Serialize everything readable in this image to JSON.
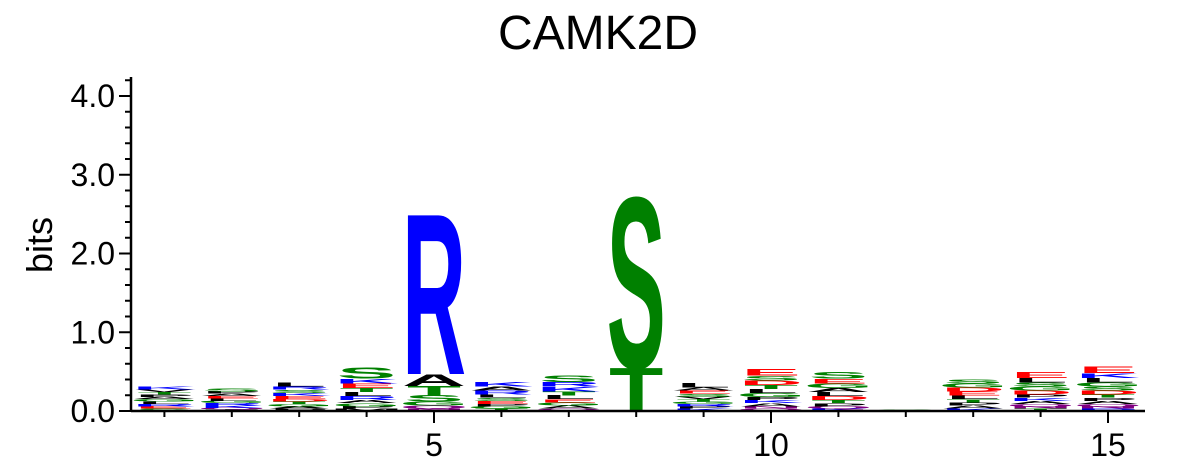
{
  "chart_data": {
    "type": "sequence_logo",
    "title": "CAMK2D",
    "ylabel": "bits",
    "ylim": [
      0,
      4.3
    ],
    "y_ticks": [
      "0.0",
      "1.0",
      "2.0",
      "3.0",
      "4.0"
    ],
    "x_tick_labels": [
      "5",
      "10",
      "15"
    ],
    "x_ticks": [
      5,
      10,
      15
    ],
    "positions": [
      1,
      2,
      3,
      4,
      5,
      6,
      7,
      8,
      9,
      10,
      11,
      12,
      13,
      14,
      15
    ],
    "colors": {
      "acidic": "#ff0000",
      "basic": "#0000ff",
      "polar": "#008000",
      "hydrophobic": "#000000",
      "other": "#800080"
    },
    "columns": [
      {
        "pos": 1,
        "letters": [
          {
            "aa": "K",
            "h": 0.04,
            "c": "#0000ff"
          },
          {
            "aa": "S",
            "h": 0.03,
            "c": "#008000"
          },
          {
            "aa": "E",
            "h": 0.03,
            "c": "#ff0000"
          },
          {
            "aa": "R",
            "h": 0.03,
            "c": "#0000ff"
          },
          {
            "aa": "L",
            "h": 0.03,
            "c": "#000000"
          },
          {
            "aa": "G",
            "h": 0.03,
            "c": "#008000"
          },
          {
            "aa": "A",
            "h": 0.03,
            "c": "#000000"
          },
          {
            "aa": "P",
            "h": 0.03,
            "c": "#000000"
          },
          {
            "aa": "T",
            "h": 0.03,
            "c": "#008000"
          },
          {
            "aa": "V",
            "h": 0.03,
            "c": "#000000"
          }
        ]
      },
      {
        "pos": 2,
        "letters": [
          {
            "aa": "S",
            "h": 0.04,
            "c": "#008000"
          },
          {
            "aa": "K",
            "h": 0.03,
            "c": "#0000ff"
          },
          {
            "aa": "R",
            "h": 0.03,
            "c": "#0000ff"
          },
          {
            "aa": "G",
            "h": 0.03,
            "c": "#008000"
          },
          {
            "aa": "L",
            "h": 0.03,
            "c": "#000000"
          },
          {
            "aa": "E",
            "h": 0.03,
            "c": "#ff0000"
          },
          {
            "aa": "A",
            "h": 0.03,
            "c": "#000000"
          },
          {
            "aa": "P",
            "h": 0.03,
            "c": "#000000"
          },
          {
            "aa": "T",
            "h": 0.02,
            "c": "#008000"
          },
          {
            "aa": "Q",
            "h": 0.02,
            "c": "#800080"
          }
        ]
      },
      {
        "pos": 3,
        "letters": [
          {
            "aa": "L",
            "h": 0.05,
            "c": "#000000"
          },
          {
            "aa": "E",
            "h": 0.04,
            "c": "#ff0000"
          },
          {
            "aa": "K",
            "h": 0.04,
            "c": "#0000ff"
          },
          {
            "aa": "S",
            "h": 0.04,
            "c": "#008000"
          },
          {
            "aa": "R",
            "h": 0.04,
            "c": "#0000ff"
          },
          {
            "aa": "P",
            "h": 0.03,
            "c": "#000000"
          },
          {
            "aa": "A",
            "h": 0.03,
            "c": "#000000"
          },
          {
            "aa": "G",
            "h": 0.03,
            "c": "#008000"
          },
          {
            "aa": "T",
            "h": 0.03,
            "c": "#008000"
          },
          {
            "aa": "D",
            "h": 0.03,
            "c": "#ff0000"
          }
        ]
      },
      {
        "pos": 4,
        "letters": [
          {
            "aa": "S",
            "h": 0.14,
            "c": "#008000"
          },
          {
            "aa": "E",
            "h": 0.06,
            "c": "#ff0000"
          },
          {
            "aa": "K",
            "h": 0.06,
            "c": "#0000ff"
          },
          {
            "aa": "R",
            "h": 0.05,
            "c": "#0000ff"
          },
          {
            "aa": "L",
            "h": 0.05,
            "c": "#000000"
          },
          {
            "aa": "T",
            "h": 0.05,
            "c": "#008000"
          },
          {
            "aa": "G",
            "h": 0.04,
            "c": "#008000"
          },
          {
            "aa": "A",
            "h": 0.04,
            "c": "#000000"
          },
          {
            "aa": "M",
            "h": 0.03,
            "c": "#000000"
          },
          {
            "aa": "P",
            "h": 0.03,
            "c": "#000000"
          }
        ]
      },
      {
        "pos": 5,
        "letters": [
          {
            "aa": "R",
            "h": 2.05,
            "c": "#0000ff"
          },
          {
            "aa": "A",
            "h": 0.15,
            "c": "#000000"
          },
          {
            "aa": "T",
            "h": 0.12,
            "c": "#008000"
          },
          {
            "aa": "S",
            "h": 0.08,
            "c": "#008000"
          },
          {
            "aa": "G",
            "h": 0.05,
            "c": "#008000"
          },
          {
            "aa": "Q",
            "h": 0.04,
            "c": "#800080"
          },
          {
            "aa": "N",
            "h": 0.03,
            "c": "#800080"
          }
        ]
      },
      {
        "pos": 6,
        "letters": [
          {
            "aa": "K",
            "h": 0.06,
            "c": "#0000ff"
          },
          {
            "aa": "R",
            "h": 0.05,
            "c": "#0000ff"
          },
          {
            "aa": "A",
            "h": 0.05,
            "c": "#000000"
          },
          {
            "aa": "E",
            "h": 0.04,
            "c": "#ff0000"
          },
          {
            "aa": "S",
            "h": 0.04,
            "c": "#008000"
          },
          {
            "aa": "L",
            "h": 0.04,
            "c": "#000000"
          },
          {
            "aa": "T",
            "h": 0.03,
            "c": "#008000"
          },
          {
            "aa": "G",
            "h": 0.03,
            "c": "#008000"
          },
          {
            "aa": "P",
            "h": 0.03,
            "c": "#000000"
          }
        ]
      },
      {
        "pos": 7,
        "letters": [
          {
            "aa": "S",
            "h": 0.08,
            "c": "#008000"
          },
          {
            "aa": "K",
            "h": 0.06,
            "c": "#0000ff"
          },
          {
            "aa": "R",
            "h": 0.06,
            "c": "#0000ff"
          },
          {
            "aa": "L",
            "h": 0.05,
            "c": "#000000"
          },
          {
            "aa": "T",
            "h": 0.05,
            "c": "#008000"
          },
          {
            "aa": "A",
            "h": 0.04,
            "c": "#000000"
          },
          {
            "aa": "G",
            "h": 0.04,
            "c": "#008000"
          },
          {
            "aa": "E",
            "h": 0.04,
            "c": "#ff0000"
          },
          {
            "aa": "Q",
            "h": 0.03,
            "c": "#800080"
          }
        ]
      },
      {
        "pos": 8,
        "letters": [
          {
            "aa": "S",
            "h": 2.18,
            "c": "#008000"
          },
          {
            "aa": "T",
            "h": 0.55,
            "c": "#008000"
          }
        ]
      },
      {
        "pos": 9,
        "letters": [
          {
            "aa": "L",
            "h": 0.06,
            "c": "#000000"
          },
          {
            "aa": "S",
            "h": 0.04,
            "c": "#008000"
          },
          {
            "aa": "E",
            "h": 0.04,
            "c": "#ff0000"
          },
          {
            "aa": "A",
            "h": 0.04,
            "c": "#000000"
          },
          {
            "aa": "K",
            "h": 0.03,
            "c": "#0000ff"
          },
          {
            "aa": "P",
            "h": 0.03,
            "c": "#000000"
          },
          {
            "aa": "R",
            "h": 0.03,
            "c": "#0000ff"
          },
          {
            "aa": "G",
            "h": 0.03,
            "c": "#008000"
          },
          {
            "aa": "T",
            "h": 0.03,
            "c": "#008000"
          },
          {
            "aa": "V",
            "h": 0.03,
            "c": "#000000"
          }
        ]
      },
      {
        "pos": 10,
        "letters": [
          {
            "aa": "E",
            "h": 0.08,
            "c": "#ff0000"
          },
          {
            "aa": "D",
            "h": 0.06,
            "c": "#ff0000"
          },
          {
            "aa": "S",
            "h": 0.06,
            "c": "#008000"
          },
          {
            "aa": "G",
            "h": 0.05,
            "c": "#008000"
          },
          {
            "aa": "L",
            "h": 0.05,
            "c": "#000000"
          },
          {
            "aa": "T",
            "h": 0.05,
            "c": "#008000"
          },
          {
            "aa": "A",
            "h": 0.04,
            "c": "#000000"
          },
          {
            "aa": "K",
            "h": 0.04,
            "c": "#0000ff"
          },
          {
            "aa": "P",
            "h": 0.04,
            "c": "#000000"
          },
          {
            "aa": "Q",
            "h": 0.03,
            "c": "#800080"
          },
          {
            "aa": "N",
            "h": 0.03,
            "c": "#800080"
          }
        ]
      },
      {
        "pos": 11,
        "letters": [
          {
            "aa": "S",
            "h": 0.08,
            "c": "#008000"
          },
          {
            "aa": "G",
            "h": 0.06,
            "c": "#008000"
          },
          {
            "aa": "E",
            "h": 0.06,
            "c": "#ff0000"
          },
          {
            "aa": "D",
            "h": 0.05,
            "c": "#ff0000"
          },
          {
            "aa": "L",
            "h": 0.05,
            "c": "#000000"
          },
          {
            "aa": "A",
            "h": 0.05,
            "c": "#000000"
          },
          {
            "aa": "P",
            "h": 0.04,
            "c": "#000000"
          },
          {
            "aa": "T",
            "h": 0.04,
            "c": "#008000"
          },
          {
            "aa": "K",
            "h": 0.03,
            "c": "#0000ff"
          },
          {
            "aa": "Q",
            "h": 0.03,
            "c": "#800080"
          }
        ]
      },
      {
        "pos": 12,
        "letters": [
          {
            "aa": "L",
            "h": 0.01,
            "c": "#000000"
          },
          {
            "aa": "S",
            "h": 0.01,
            "c": "#008000"
          }
        ]
      },
      {
        "pos": 13,
        "letters": [
          {
            "aa": "L",
            "h": 0.05,
            "c": "#000000"
          },
          {
            "aa": "E",
            "h": 0.05,
            "c": "#ff0000"
          },
          {
            "aa": "D",
            "h": 0.05,
            "c": "#ff0000"
          },
          {
            "aa": "G",
            "h": 0.05,
            "c": "#008000"
          },
          {
            "aa": "S",
            "h": 0.05,
            "c": "#008000"
          },
          {
            "aa": "A",
            "h": 0.04,
            "c": "#000000"
          },
          {
            "aa": "P",
            "h": 0.04,
            "c": "#000000"
          },
          {
            "aa": "T",
            "h": 0.04,
            "c": "#008000"
          },
          {
            "aa": "K",
            "h": 0.03,
            "c": "#0000ff"
          }
        ]
      },
      {
        "pos": 14,
        "letters": [
          {
            "aa": "E",
            "h": 0.07,
            "c": "#ff0000"
          },
          {
            "aa": "L",
            "h": 0.06,
            "c": "#000000"
          },
          {
            "aa": "D",
            "h": 0.05,
            "c": "#ff0000"
          },
          {
            "aa": "G",
            "h": 0.05,
            "c": "#008000"
          },
          {
            "aa": "S",
            "h": 0.05,
            "c": "#008000"
          },
          {
            "aa": "A",
            "h": 0.04,
            "c": "#000000"
          },
          {
            "aa": "K",
            "h": 0.04,
            "c": "#0000ff"
          },
          {
            "aa": "P",
            "h": 0.04,
            "c": "#000000"
          },
          {
            "aa": "T",
            "h": 0.03,
            "c": "#008000"
          },
          {
            "aa": "N",
            "h": 0.03,
            "c": "#800080"
          },
          {
            "aa": "Q",
            "h": 0.03,
            "c": "#800080"
          }
        ]
      },
      {
        "pos": 15,
        "letters": [
          {
            "aa": "E",
            "h": 0.08,
            "c": "#ff0000"
          },
          {
            "aa": "L",
            "h": 0.06,
            "c": "#000000"
          },
          {
            "aa": "K",
            "h": 0.06,
            "c": "#0000ff"
          },
          {
            "aa": "D",
            "h": 0.05,
            "c": "#ff0000"
          },
          {
            "aa": "S",
            "h": 0.05,
            "c": "#008000"
          },
          {
            "aa": "G",
            "h": 0.05,
            "c": "#008000"
          },
          {
            "aa": "A",
            "h": 0.04,
            "c": "#000000"
          },
          {
            "aa": "P",
            "h": 0.04,
            "c": "#000000"
          },
          {
            "aa": "T",
            "h": 0.04,
            "c": "#008000"
          },
          {
            "aa": "R",
            "h": 0.03,
            "c": "#0000ff"
          },
          {
            "aa": "N",
            "h": 0.03,
            "c": "#800080"
          },
          {
            "aa": "Q",
            "h": 0.03,
            "c": "#800080"
          }
        ]
      }
    ]
  }
}
